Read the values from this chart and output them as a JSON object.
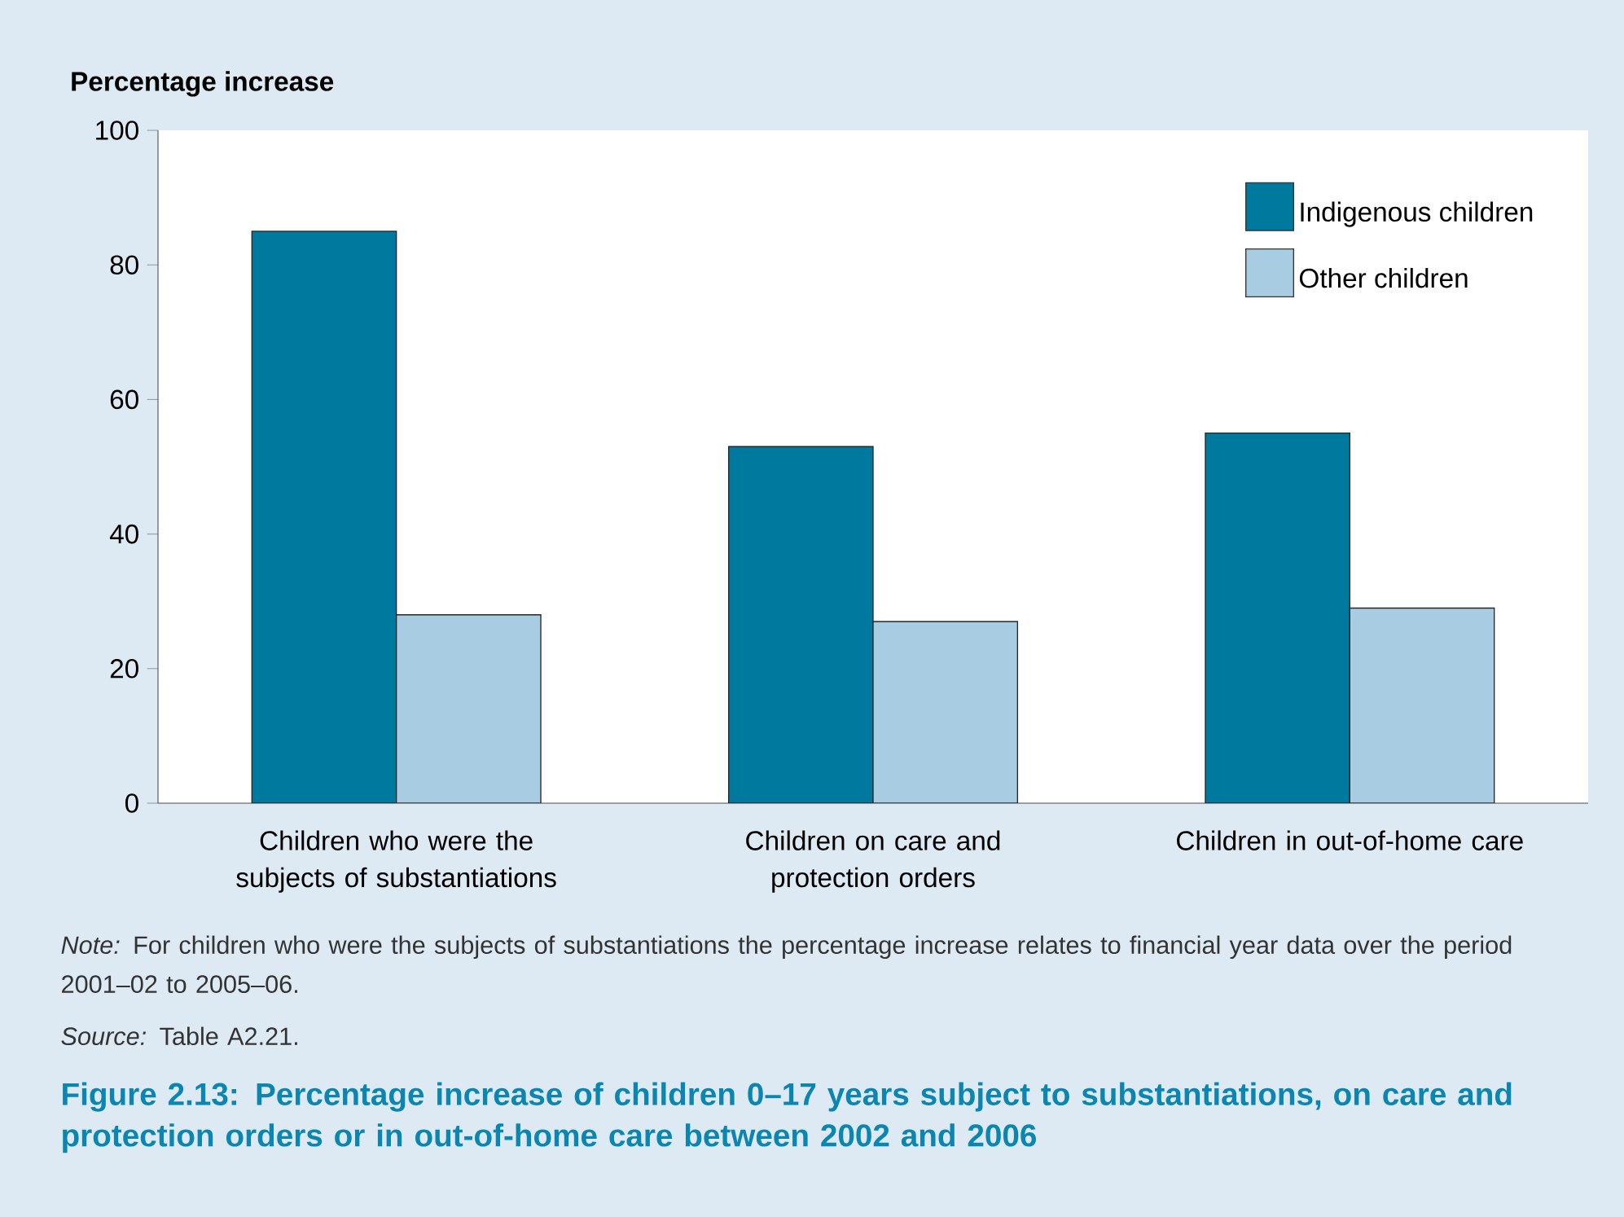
{
  "chart_data": {
    "type": "bar",
    "title": "Figure 2.13: Percentage increase of children 0–17 years subject to substantiations, on care and protection orders or in out-of-home care between 2002 and 2006",
    "ylabel": "Percentage increase",
    "categories": [
      "Children who were the subjects of substantiations",
      "Children on care and protection orders",
      "Children in out-of-home care"
    ],
    "series": [
      {
        "name": "Indigenous children",
        "color": "#00799f",
        "values": [
          85,
          53,
          55
        ]
      },
      {
        "name": "Other children",
        "color": "#a8cde2",
        "values": [
          28,
          27,
          29
        ]
      }
    ],
    "ylim": [
      0,
      100
    ],
    "yticks": [
      0,
      20,
      40,
      60,
      80,
      100
    ],
    "legend": "top right",
    "annotations": [
      "*Note:* For children who were the subjects of substantiations the percentage increase relates to financial year data over the period 2001–02 to 2005–06.",
      "*Source:* Table A2.21."
    ]
  }
}
